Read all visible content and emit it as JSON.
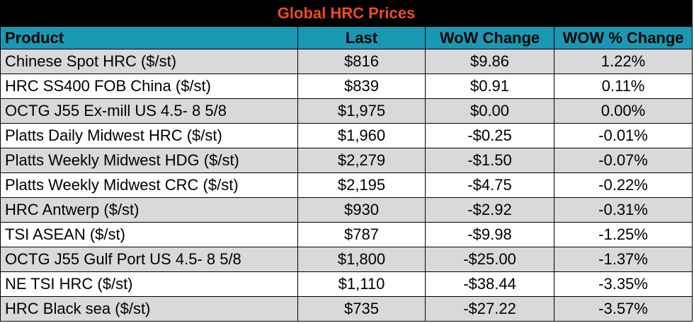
{
  "chart_data": {
    "type": "table",
    "title": "Global HRC Prices",
    "columns": [
      "Product",
      "Last",
      "WoW Change",
      "WOW % Change"
    ],
    "rows": [
      [
        "Chinese Spot HRC ($/st)",
        "$816",
        "$9.86",
        "1.22%"
      ],
      [
        "HRC SS400 FOB China ($/st)",
        "$839",
        "$0.91",
        "0.11%"
      ],
      [
        "OCTG J55 Ex-mill US 4.5- 8 5/8",
        "$1,975",
        "$0.00",
        "0.00%"
      ],
      [
        "Platts Daily Midwest HRC ($/st)",
        "$1,960",
        "-$0.25",
        "-0.01%"
      ],
      [
        "Platts Weekly Midwest HDG ($/st)",
        "$2,279",
        "-$1.50",
        "-0.07%"
      ],
      [
        "Platts Weekly Midwest CRC ($/st)",
        "$2,195",
        "-$4.75",
        "-0.22%"
      ],
      [
        "HRC Antwerp ($/st)",
        "$930",
        "-$2.92",
        "-0.31%"
      ],
      [
        "TSI ASEAN ($/st)",
        "$787",
        "-$9.98",
        "-1.25%"
      ],
      [
        "OCTG J55 Gulf Port US 4.5- 8 5/8",
        "$1,800",
        "-$25.00",
        "-1.37%"
      ],
      [
        "NE TSI HRC ($/st)",
        "$1,110",
        "-$38.44",
        "-3.35%"
      ],
      [
        "HRC Black sea ($/st)",
        "$735",
        "-$27.22",
        "-3.57%"
      ]
    ]
  },
  "colors": {
    "title_bg": "#000000",
    "title_text": "#ee4d22",
    "header_bg": "#1a98b3",
    "row_alt": "#d9d9d9",
    "row_plain": "#ffffff"
  }
}
